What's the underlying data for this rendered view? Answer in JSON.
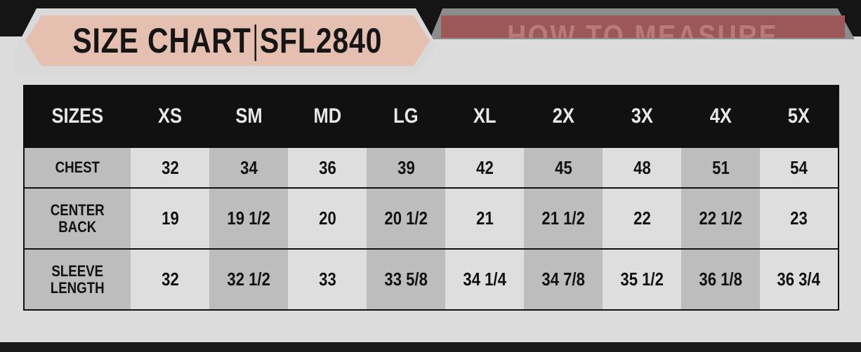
{
  "title": {
    "left": "SIZE CHART",
    "right": "SFL2840"
  },
  "secondary_tab": "HOW TO MEASURE",
  "colors": {
    "tab_active": "#e5bfb0",
    "tab_inactive": "#9c5859",
    "header_bg": "#111111"
  },
  "table": {
    "header": [
      "SIZES",
      "XS",
      "SM",
      "MD",
      "LG",
      "XL",
      "2X",
      "3X",
      "4X",
      "5X"
    ],
    "rows": [
      {
        "label": [
          "CHEST"
        ],
        "values": [
          "32",
          "34",
          "36",
          "39",
          "42",
          "45",
          "48",
          "51",
          "54"
        ]
      },
      {
        "label": [
          "CENTER",
          "BACK"
        ],
        "values": [
          "19",
          "19 1/2",
          "20",
          "20 1/2",
          "21",
          "21 1/2",
          "22",
          "22 1/2",
          "23"
        ]
      },
      {
        "label": [
          "SLEEVE",
          "LENGTH"
        ],
        "values": [
          "32",
          "32 1/2",
          "33",
          "33 5/8",
          "34 1/4",
          "34 7/8",
          "35 1/2",
          "36 1/8",
          "36 3/4"
        ]
      }
    ]
  }
}
